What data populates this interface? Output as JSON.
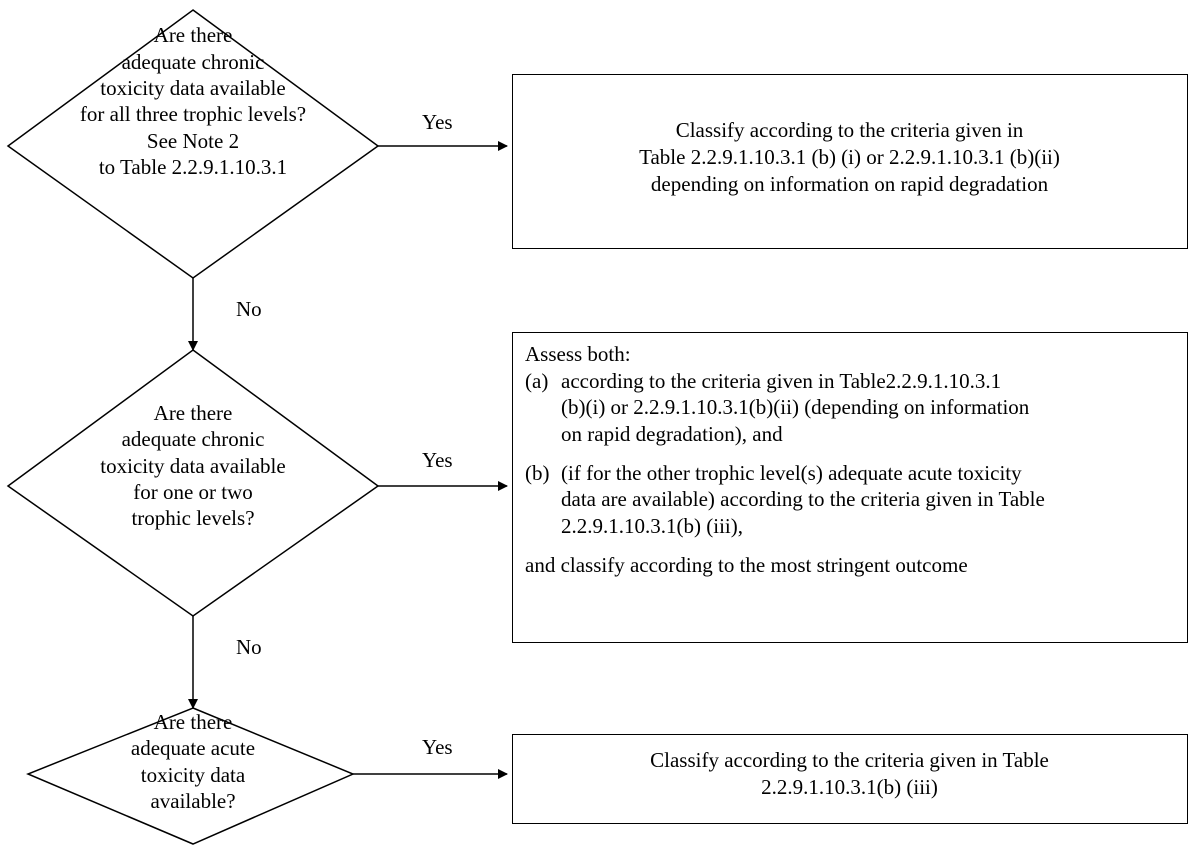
{
  "q1": {
    "lines": [
      "Are there",
      "adequate chronic",
      "toxicity data available",
      "for all three trophic levels?",
      "See Note 2",
      "to Table 2.2.9.1.10.3.1"
    ]
  },
  "q2": {
    "lines": [
      "Are there",
      "adequate chronic",
      "toxicity data available",
      "for one or two",
      "trophic levels?"
    ]
  },
  "q3": {
    "lines": [
      "Are there",
      "adequate acute",
      "toxicity data",
      "available?"
    ]
  },
  "labels": {
    "yes": "Yes",
    "no": "No"
  },
  "box1": {
    "lines": [
      "Classify according to the criteria given in",
      "Table 2.2.9.1.10.3.1 (b) (i) or 2.2.9.1.10.3.1 (b)(ii)",
      "depending on information on rapid degradation"
    ]
  },
  "box2": {
    "intro": "Assess both:",
    "a_marker": "(a)",
    "a_lines": [
      "according to the criteria given in Table2.2.9.1.10.3.1",
      "(b)(i) or 2.2.9.1.10.3.1(b)(ii) (depending on information",
      "on rapid degradation), and"
    ],
    "b_marker": "(b)",
    "b_lines": [
      "(if for the other trophic level(s) adequate acute toxicity",
      "data are available) according to the criteria given in Table",
      "2.2.9.1.10.3.1(b) (iii),"
    ],
    "outro": "and classify according to the most stringent outcome"
  },
  "box3": {
    "lines": [
      "Classify according to the criteria given in Table",
      "2.2.9.1.10.3.1(b) (iii)"
    ]
  }
}
